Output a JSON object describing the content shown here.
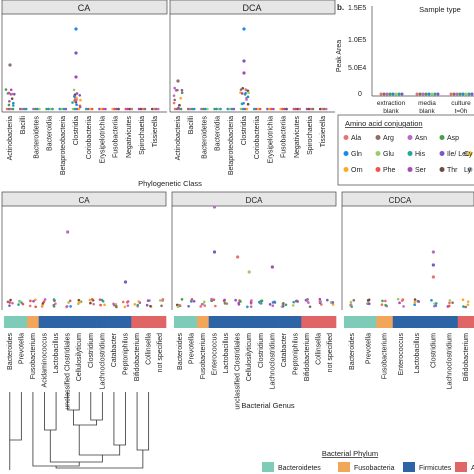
{
  "panel_a": {
    "facets": [
      "CA",
      "DCA"
    ],
    "xlabel": "Phylogenetic Class",
    "classes": [
      "Actinobacteria",
      "Bacilli",
      "Bacteroidetes",
      "Bacteroidia",
      "Betaproteobacteria",
      "Clostridia",
      "Coriobacteriia",
      "Erysipelotrichia",
      "Fusobacteriia",
      "Negativicutes",
      "Spirochaetia",
      "Tissierella"
    ]
  },
  "panel_b": {
    "letter": "b.",
    "title": "Sample type",
    "ylabel": "Peak Area",
    "yticks": [
      "1.5E5",
      "1.0E5",
      "5.0E4",
      "0"
    ],
    "categories": [
      "extraction blank",
      "media blank",
      "culture t=0h"
    ]
  },
  "legend_aa": {
    "title": "Amino acid conjugation",
    "items": [
      {
        "label": "Ala",
        "color": "#e57373"
      },
      {
        "label": "Arg",
        "color": "#8d6e63"
      },
      {
        "label": "Asn",
        "color": "#ba68c8"
      },
      {
        "label": "Asp",
        "color": "#43a047"
      },
      {
        "label": "Gln",
        "color": "#1e88e5"
      },
      {
        "label": "Glu",
        "color": "#9ccc65"
      },
      {
        "label": "His",
        "color": "#26a69a"
      },
      {
        "label": "Ile/ Leu",
        "color": "#7e57c2"
      },
      {
        "label": "Orn",
        "color": "#ffa726"
      },
      {
        "label": "Phe",
        "color": "#ef5350"
      },
      {
        "label": "Ser",
        "color": "#ab47bc"
      },
      {
        "label": "Thr",
        "color": "#6d4c41"
      }
    ],
    "extra_labels": [
      "Cy",
      "Ly"
    ]
  },
  "panel_c": {
    "facets": [
      "CA",
      "DCA",
      "CDCA"
    ],
    "xlabel": "Bacterial Genus",
    "genera_ca": [
      "Bacteroides",
      "Prevotella",
      "Fusobacterium",
      "Acidaminococcus",
      "Lactobacillus",
      "unclassified Clostridiales",
      "Cellulosilyticum",
      "Clostridium",
      "Lachnoclostridium",
      "Catabacter",
      "Peptoniphilus",
      "Bifidobacterium",
      "Collinsella",
      "not specified"
    ],
    "genera_dca": [
      "Bacteroides",
      "Prevotella",
      "Fusobacterium",
      "Enterococcus",
      "Lactobacillus",
      "unclassified Clostridiales",
      "Cellulosilyticum",
      "Clostridium",
      "Lachnoclostridium",
      "Catabacter",
      "Peptoniphilus",
      "Bifidobacterium",
      "Collinsella",
      "not specified"
    ],
    "genera_cdca": [
      "Bacteroides",
      "Prevotella",
      "Fusobacterium",
      "Enterococcus",
      "Lactobacillus",
      "Clostridium",
      "Lachnoclostridium",
      "Bifidobacterium"
    ]
  },
  "legend_phylum": {
    "title": "Bacterial Phylum",
    "items": [
      {
        "label": "Bacteroidetes",
        "color": "#7ecbb8"
      },
      {
        "label": "Fusobacteria",
        "color": "#f2a65a"
      },
      {
        "label": "Firmicutes",
        "color": "#2c64a6"
      },
      {
        "label": "Actinobacteria",
        "color": "#e06666"
      }
    ]
  },
  "chart_data": [
    {
      "type": "scatter",
      "facets": [
        "CA",
        "DCA"
      ],
      "categories": [
        "Actinobacteria",
        "Bacilli",
        "Bacteroidetes",
        "Bacteroidia",
        "Betaproteobacteria",
        "Clostridia",
        "Coriobacteriia",
        "Erysipelotrichia",
        "Fusobacteriia",
        "Negativicutes",
        "Spirochaetia",
        "Tissierella"
      ],
      "xlabel": "Phylogenetic Class",
      "peaks": {
        "CA": [
          [
            0,
            0.55
          ],
          [
            5,
            1.0
          ],
          [
            5,
            0.7
          ],
          [
            5,
            0.4
          ]
        ],
        "DCA": [
          [
            0,
            0.35
          ],
          [
            5,
            1.0
          ],
          [
            5,
            0.6
          ],
          [
            5,
            0.45
          ]
        ]
      }
    },
    {
      "type": "scatter",
      "title": "Sample type",
      "ylabel": "Peak Area",
      "categories": [
        "extraction blank",
        "media blank",
        "culture t=0h"
      ],
      "values": [
        0,
        0,
        0
      ],
      "ylim": [
        0,
        150000
      ]
    },
    {
      "type": "scatter",
      "facets": [
        "CA",
        "DCA",
        "CDCA"
      ],
      "xlabel": "Bacterial Genus",
      "phylum_colors": [
        "Bacteroidetes",
        "Fusobacteria",
        "Firmicutes",
        "Actinobacteria"
      ]
    }
  ]
}
